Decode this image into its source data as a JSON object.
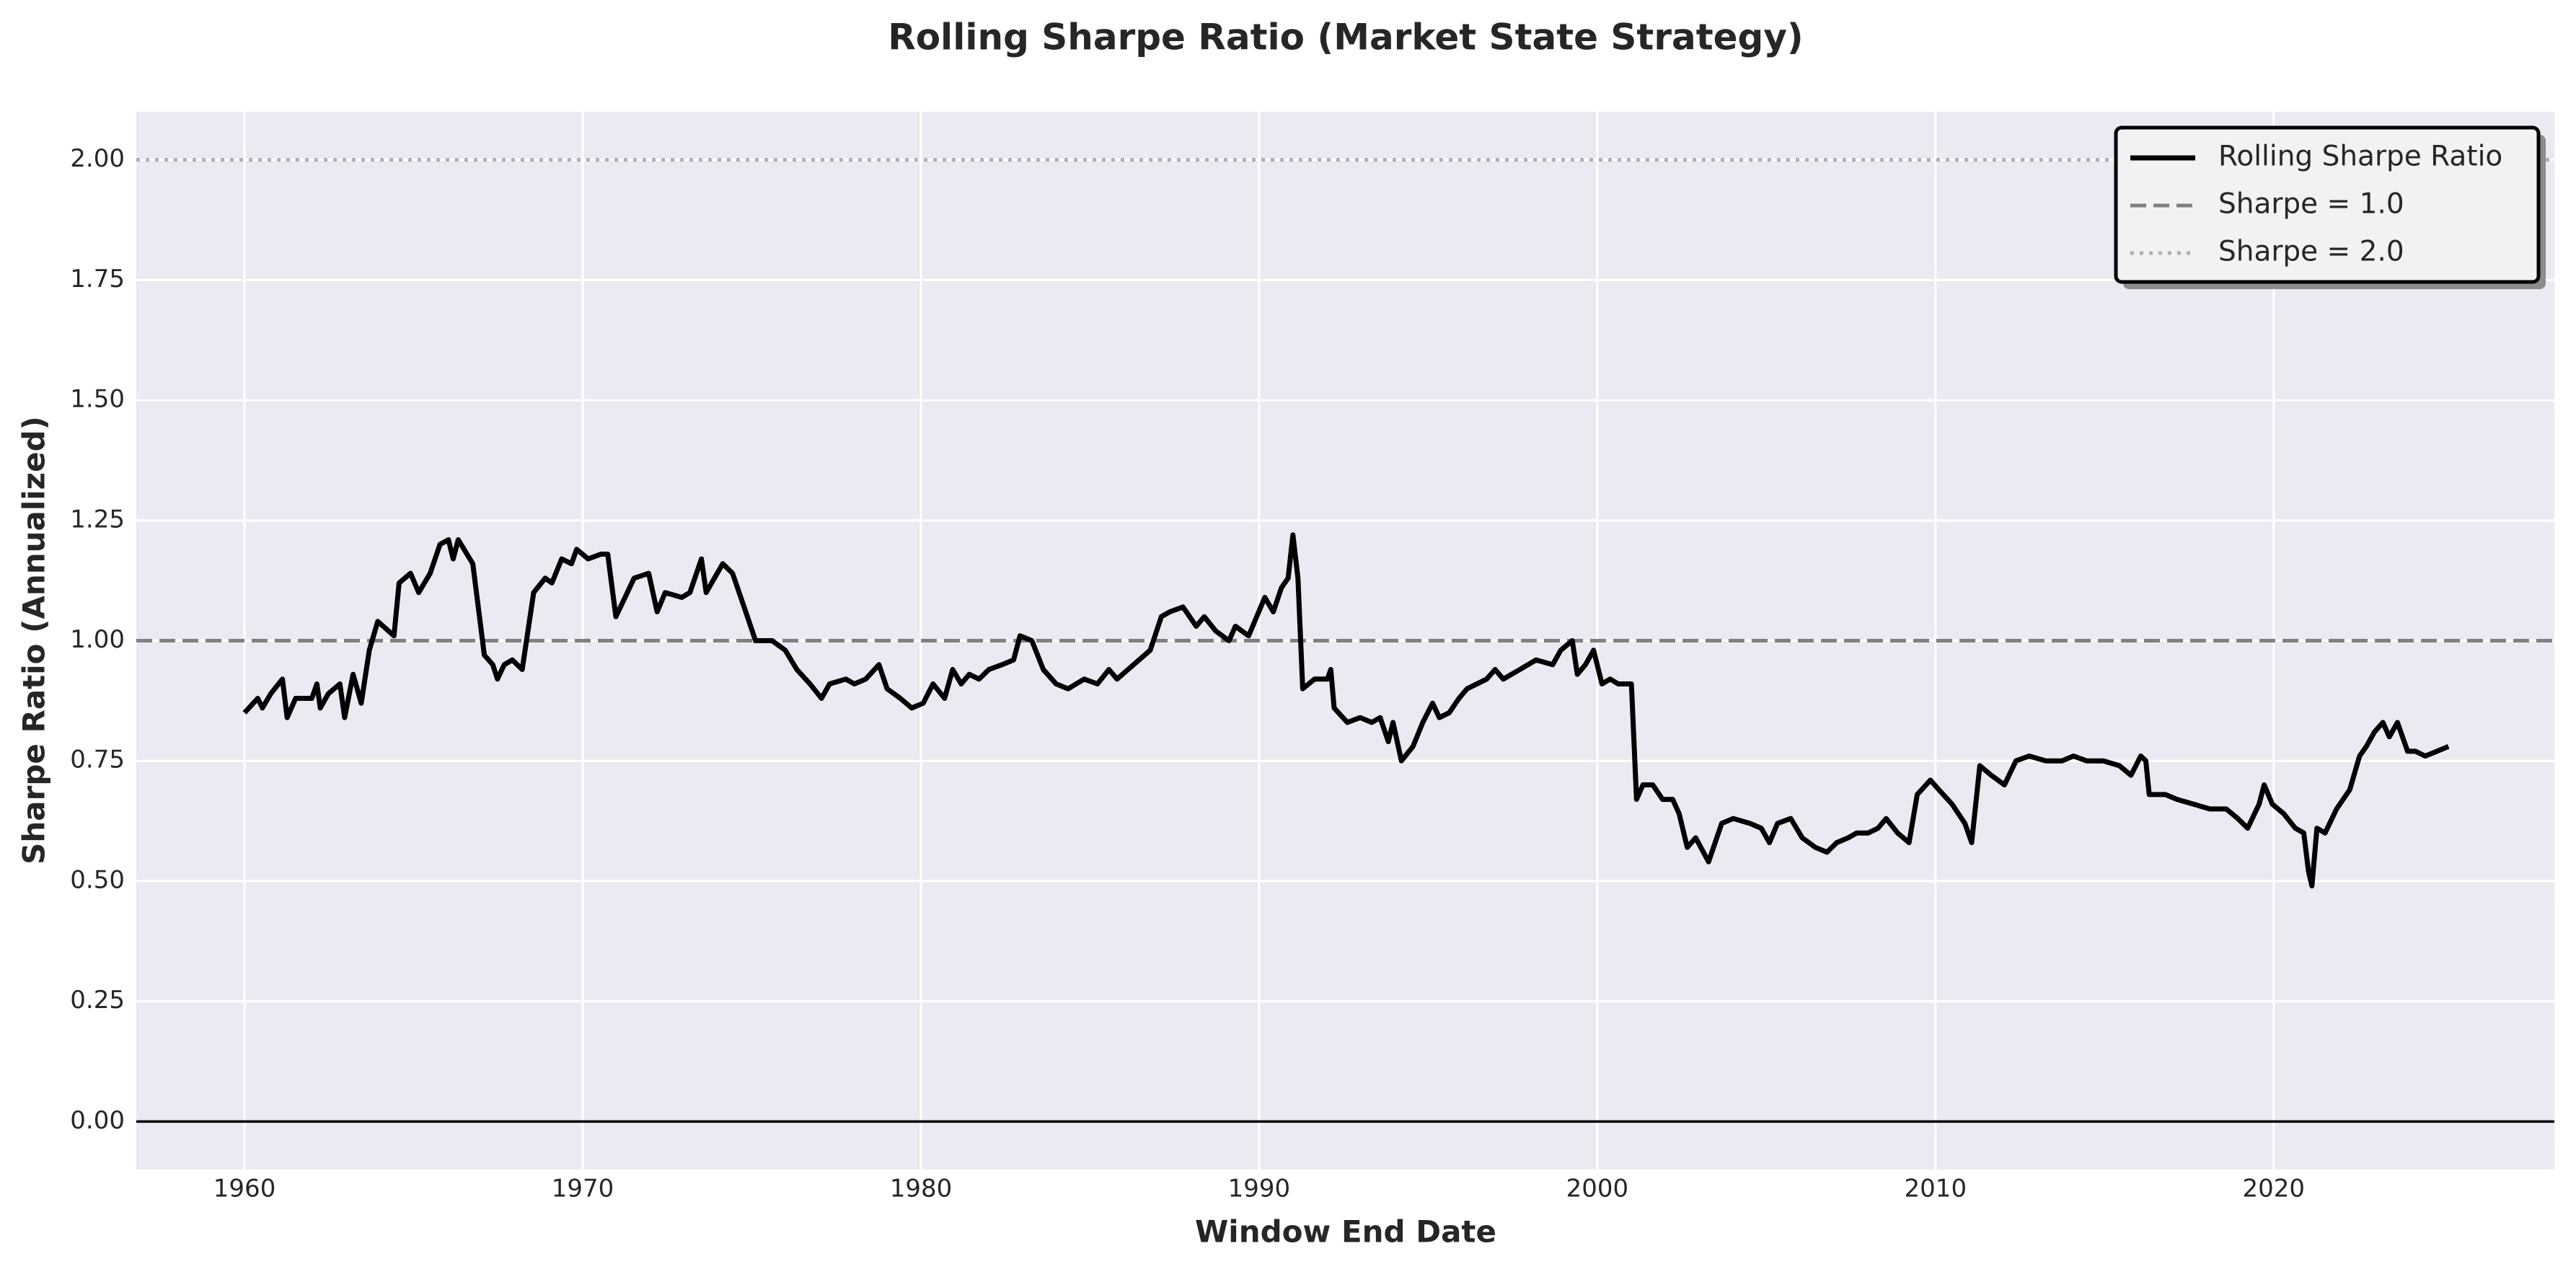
{
  "chart_data": {
    "type": "line",
    "title": "Rolling Sharpe Ratio (Market State Strategy)",
    "x_label": "Window End Date",
    "y_label": "Sharpe Ratio (Annualized)",
    "xlim": [
      1956.8,
      2028.3
    ],
    "ylim": [
      -0.1,
      2.1
    ],
    "xticks": [
      1960,
      1970,
      1980,
      1990,
      2000,
      2010,
      2020
    ],
    "yticks": [
      {
        "value": 0,
        "label": "0.00"
      },
      {
        "value": 0.25,
        "label": "0.25"
      },
      {
        "value": 0.5,
        "label": "0.50"
      },
      {
        "value": 0.75,
        "label": "0.75"
      },
      {
        "value": 1,
        "label": "1.00"
      },
      {
        "value": 1.25,
        "label": "1.25"
      },
      {
        "value": 1.5,
        "label": "1.50"
      },
      {
        "value": 1.75,
        "label": "1.75"
      },
      {
        "value": 2,
        "label": "2.00"
      }
    ],
    "grid": true,
    "legend": "upper right",
    "series": [
      {
        "name": "Rolling Sharpe Ratio",
        "color": "#000000",
        "x": [
          1960.0,
          1960.39,
          1960.53,
          1960.78,
          1961.12,
          1961.26,
          1961.51,
          1961.99,
          1962.14,
          1962.24,
          1962.48,
          1962.82,
          1962.96,
          1963.21,
          1963.45,
          1963.69,
          1963.94,
          1964.42,
          1964.57,
          1964.91,
          1965.15,
          1965.49,
          1965.78,
          1966.03,
          1966.17,
          1966.32,
          1966.75,
          1967.09,
          1967.34,
          1967.48,
          1967.68,
          1967.92,
          1968.21,
          1968.55,
          1968.89,
          1969.09,
          1969.38,
          1969.67,
          1969.82,
          1970.16,
          1970.54,
          1970.74,
          1970.98,
          1971.32,
          1971.52,
          1971.95,
          1972.2,
          1972.44,
          1972.93,
          1973.17,
          1973.51,
          1973.65,
          1974.14,
          1974.43,
          1974.87,
          1975.11,
          1975.6,
          1975.99,
          1976.33,
          1976.72,
          1977.06,
          1977.3,
          1977.78,
          1978.03,
          1978.37,
          1978.76,
          1979.0,
          1979.39,
          1979.73,
          1980.07,
          1980.36,
          1980.7,
          1980.94,
          1981.19,
          1981.43,
          1981.72,
          1982.01,
          1982.4,
          1982.74,
          1982.93,
          1983.28,
          1983.62,
          1984.0,
          1984.35,
          1984.83,
          1985.22,
          1985.56,
          1985.8,
          1986.29,
          1986.78,
          1987.11,
          1987.36,
          1987.75,
          1988.14,
          1988.38,
          1988.72,
          1989.11,
          1989.3,
          1989.69,
          1989.93,
          1990.17,
          1990.42,
          1990.66,
          1990.86,
          1991.0,
          1991.15,
          1991.29,
          1991.64,
          1992.02,
          1992.12,
          1992.22,
          1992.61,
          1992.99,
          1993.33,
          1993.58,
          1993.82,
          1993.96,
          1994.21,
          1994.55,
          1994.84,
          1995.13,
          1995.33,
          1995.62,
          1995.91,
          1996.15,
          1996.73,
          1996.98,
          1997.22,
          1997.71,
          1998.19,
          1998.68,
          1998.92,
          1999.26,
          1999.41,
          1999.65,
          1999.89,
          2000.14,
          2000.38,
          2000.62,
          2001.01,
          2001.16,
          2001.35,
          2001.64,
          2001.93,
          2002.23,
          2002.42,
          2002.66,
          2002.91,
          2003.29,
          2003.68,
          2004.02,
          2004.51,
          2004.85,
          2005.09,
          2005.33,
          2005.72,
          2006.06,
          2006.45,
          2006.79,
          2007.08,
          2007.42,
          2007.67,
          2008.01,
          2008.3,
          2008.54,
          2008.88,
          2009.22,
          2009.46,
          2009.85,
          2010.1,
          2010.49,
          2010.87,
          2011.07,
          2011.31,
          2011.65,
          2012.04,
          2012.38,
          2012.77,
          2013.26,
          2013.74,
          2014.08,
          2014.47,
          2014.96,
          2015.44,
          2015.78,
          2016.07,
          2016.22,
          2016.32,
          2016.8,
          2017.14,
          2017.63,
          2018.11,
          2018.6,
          2018.94,
          2019.23,
          2019.57,
          2019.72,
          2019.96,
          2020.3,
          2020.64,
          2020.89,
          2021.03,
          2021.13,
          2021.28,
          2021.52,
          2021.86,
          2022.25,
          2022.54,
          2022.74,
          2022.98,
          2023.23,
          2023.42,
          2023.66,
          2023.96,
          2024.19,
          2024.48,
          2024.83,
          2025.17
        ],
        "values": [
          0.85,
          0.88,
          0.86,
          0.89,
          0.92,
          0.84,
          0.88,
          0.88,
          0.91,
          0.86,
          0.89,
          0.91,
          0.84,
          0.93,
          0.87,
          0.98,
          1.04,
          1.01,
          1.12,
          1.14,
          1.1,
          1.14,
          1.2,
          1.21,
          1.17,
          1.21,
          1.16,
          0.97,
          0.95,
          0.92,
          0.95,
          0.96,
          0.94,
          1.1,
          1.13,
          1.12,
          1.17,
          1.16,
          1.19,
          1.17,
          1.18,
          1.18,
          1.05,
          1.1,
          1.13,
          1.14,
          1.06,
          1.1,
          1.09,
          1.1,
          1.17,
          1.1,
          1.16,
          1.14,
          1.05,
          1.0,
          1.0,
          0.98,
          0.94,
          0.91,
          0.88,
          0.91,
          0.92,
          0.91,
          0.92,
          0.95,
          0.9,
          0.88,
          0.86,
          0.87,
          0.91,
          0.88,
          0.94,
          0.91,
          0.93,
          0.92,
          0.94,
          0.95,
          0.96,
          1.01,
          1.0,
          0.94,
          0.91,
          0.9,
          0.92,
          0.91,
          0.94,
          0.92,
          0.95,
          0.98,
          1.05,
          1.06,
          1.07,
          1.03,
          1.05,
          1.02,
          1.0,
          1.03,
          1.01,
          1.05,
          1.09,
          1.06,
          1.11,
          1.13,
          1.22,
          1.13,
          0.9,
          0.92,
          0.92,
          0.94,
          0.86,
          0.83,
          0.84,
          0.83,
          0.84,
          0.79,
          0.83,
          0.75,
          0.78,
          0.83,
          0.87,
          0.84,
          0.85,
          0.88,
          0.9,
          0.92,
          0.94,
          0.92,
          0.94,
          0.96,
          0.95,
          0.98,
          1.0,
          0.93,
          0.95,
          0.98,
          0.91,
          0.92,
          0.91,
          0.91,
          0.67,
          0.7,
          0.7,
          0.67,
          0.67,
          0.64,
          0.57,
          0.59,
          0.54,
          0.62,
          0.63,
          0.62,
          0.61,
          0.58,
          0.62,
          0.63,
          0.59,
          0.57,
          0.56,
          0.58,
          0.59,
          0.6,
          0.6,
          0.61,
          0.63,
          0.6,
          0.58,
          0.68,
          0.71,
          0.69,
          0.66,
          0.62,
          0.58,
          0.74,
          0.72,
          0.7,
          0.75,
          0.76,
          0.75,
          0.75,
          0.76,
          0.75,
          0.75,
          0.74,
          0.72,
          0.76,
          0.75,
          0.68,
          0.68,
          0.67,
          0.66,
          0.65,
          0.65,
          0.63,
          0.61,
          0.66,
          0.7,
          0.66,
          0.64,
          0.61,
          0.6,
          0.52,
          0.49,
          0.61,
          0.6,
          0.65,
          0.69,
          0.76,
          0.78,
          0.81,
          0.83,
          0.8,
          0.83,
          0.77,
          0.77,
          0.76,
          0.77,
          0.78
        ]
      }
    ],
    "reference_lines": [
      {
        "name": "Sharpe = 1.0",
        "value": 1.0,
        "color": "#808080",
        "style": "dashed"
      },
      {
        "name": "Sharpe = 2.0",
        "value": 2.0,
        "color": "#b0b0b0",
        "style": "dotted"
      },
      {
        "value": 0,
        "color": "#000000",
        "style": "solid"
      }
    ]
  }
}
